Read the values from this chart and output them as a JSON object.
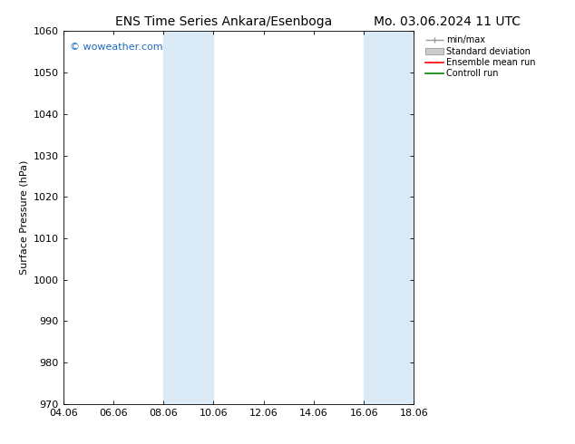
{
  "title_left": "ENS Time Series Ankara/Esenboga",
  "title_right": "Mo. 03.06.2024 11 UTC",
  "ylabel": "Surface Pressure (hPa)",
  "ylim": [
    970,
    1060
  ],
  "yticks": [
    970,
    980,
    990,
    1000,
    1010,
    1020,
    1030,
    1040,
    1050,
    1060
  ],
  "xtick_labels": [
    "04.06",
    "06.06",
    "08.06",
    "10.06",
    "12.06",
    "14.06",
    "16.06",
    "18.06"
  ],
  "xtick_positions": [
    0,
    2,
    4,
    6,
    8,
    10,
    12,
    14
  ],
  "xlim": [
    0,
    14
  ],
  "band1_start": 4,
  "band1_end": 6,
  "band2_start": 12,
  "band2_end": 14,
  "band_color": "#daeaf6",
  "watermark_text": "© woweather.com",
  "watermark_color": "#1e6bbf",
  "background_color": "#ffffff",
  "legend_labels": [
    "min/max",
    "Standard deviation",
    "Ensemble mean run",
    "Controll run"
  ],
  "legend_colors": [
    "#999999",
    "#cccccc",
    "#ff0000",
    "#008000"
  ],
  "title_fontsize": 10,
  "tick_fontsize": 8,
  "ylabel_fontsize": 8,
  "legend_fontsize": 7,
  "watermark_fontsize": 8
}
